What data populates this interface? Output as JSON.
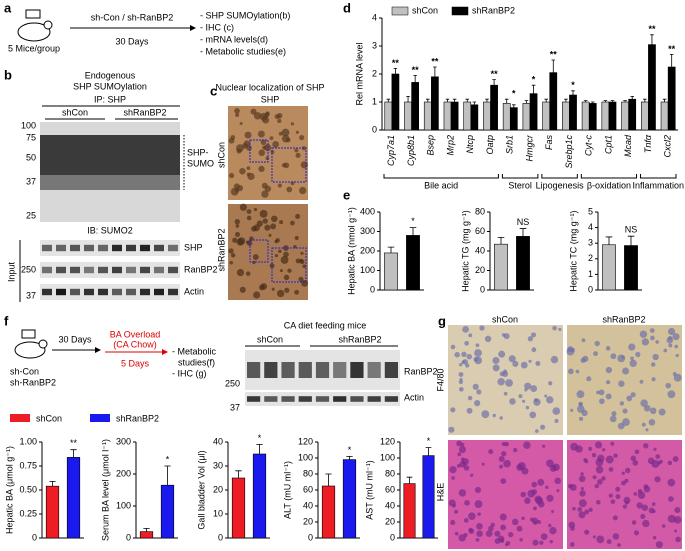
{
  "panels": {
    "a": {
      "letter": "a",
      "treatment": "sh-Con / sh-RanBP2",
      "group_size": "5 Mice/group",
      "duration": "30 Days",
      "readouts": [
        "- SHP SUMOylation(b)",
        "- IHC (c)",
        "- mRNA levels(d)",
        "- Metabolic studies(e)"
      ]
    },
    "b": {
      "letter": "b",
      "title": [
        "Endogenous",
        "SHP SUMOylation"
      ],
      "ip": "IP: SHP",
      "lanes": [
        "shCon",
        "shRanBP2"
      ],
      "mw_top": [
        "100",
        "75",
        "50",
        "37",
        "25"
      ],
      "band_label": [
        "SHP-",
        "SUMO"
      ],
      "ib": "IB: SUMO2",
      "input": "Input",
      "input_rows": [
        "SHP",
        "RanBP2",
        "Actin"
      ],
      "mw_input": [
        "250",
        "37"
      ]
    },
    "c": {
      "letter": "c",
      "title": "Nuclear localization of SHP",
      "stain": "SHP",
      "rows": [
        "shCon",
        "shRanBP2"
      ]
    },
    "e": {
      "letter": "e"
    },
    "d": {
      "letter": "d"
    },
    "f": {
      "letter": "f",
      "mouse": [
        "sh-Con",
        "sh-RanBP2"
      ],
      "step1": "30 Days",
      "overload": [
        "BA Overload",
        "(CA Chow)"
      ],
      "step2": "5 Days",
      "readouts": [
        "- Metabolic",
        "studies(f)",
        "- IHC (g)"
      ],
      "blot_title": "CA diet feeding mice",
      "lanes": [
        "shCon",
        "shRanBP2"
      ],
      "blot_rows": [
        "RanBP2",
        "Actin"
      ],
      "mw": [
        "250",
        "37"
      ],
      "legend": [
        {
          "name": "shCon",
          "color": "#ee1c25"
        },
        {
          "name": "shRanBP2",
          "color": "#1a1aee"
        }
      ]
    },
    "g": {
      "letter": "g",
      "columns": [
        "shCon",
        "shRanBP2"
      ],
      "rows": [
        "F4/80",
        "H&E"
      ]
    }
  },
  "chart_data": [
    {
      "type": "bar",
      "y_label": "Rel mRNA level",
      "categories": [
        "Cyp7a1",
        "Cyp8b1",
        "Bsep",
        "Mrp2",
        "Ntcp",
        "Oatp",
        "Srb1",
        "Hmgcr",
        "Fas",
        "Srebp1c",
        "Cyt-c",
        "Cpt1",
        "Mcad",
        "Tnfα",
        "Cxcl2"
      ],
      "series": [
        {
          "name": "shCon",
          "color": "#c0c0c0",
          "values": [
            1,
            1,
            1,
            1,
            1,
            1,
            0.95,
            0.95,
            1,
            1,
            1,
            1,
            1,
            1,
            1
          ],
          "errors": [
            0.1,
            0.2,
            0.1,
            0.1,
            0.1,
            0.1,
            0.15,
            0.1,
            0.1,
            0.1,
            0.05,
            0.05,
            0.05,
            0.1,
            0.1
          ]
        },
        {
          "name": "shRanBP2",
          "color": "#000000",
          "values": [
            2,
            1.7,
            1.9,
            1,
            0.9,
            1.6,
            0.8,
            1.3,
            2.05,
            1.25,
            0.95,
            1,
            1.1,
            3.05,
            2.25
          ],
          "errors": [
            0.2,
            0.25,
            0.35,
            0.1,
            0.1,
            0.2,
            0.1,
            0.3,
            0.45,
            0.15,
            0.05,
            0.05,
            0.1,
            0.35,
            0.45
          ]
        }
      ],
      "annotations": [
        "**",
        "**",
        "**",
        null,
        null,
        "**",
        "*",
        "*",
        "**",
        "*",
        null,
        null,
        null,
        "**",
        "**"
      ],
      "groups": [
        "Bile acid",
        "Sterol",
        "Lipogenesis",
        "β-oxidation",
        "Inflammation"
      ],
      "ylim": [
        0,
        4
      ],
      "yticks": [
        0,
        1,
        2,
        3,
        4
      ]
    },
    {
      "type": "bar",
      "y_label": "Hepatic BA (nmol g⁻¹)",
      "values": [
        190,
        280
      ],
      "errors": [
        30,
        40
      ],
      "colors": [
        "#c0c0c0",
        "#000000"
      ],
      "annotations": [
        null,
        "*"
      ],
      "ylim": [
        0,
        400
      ],
      "yticks": [
        0,
        100,
        200,
        300,
        400
      ]
    },
    {
      "type": "bar",
      "y_label": "Hepatic TG (mg g⁻¹)",
      "values": [
        47,
        55
      ],
      "errors": [
        7,
        8
      ],
      "colors": [
        "#c0c0c0",
        "#000000"
      ],
      "annotations": [
        null,
        "NS"
      ],
      "ylim": [
        0,
        80
      ],
      "yticks": [
        0,
        20,
        40,
        60,
        80
      ]
    },
    {
      "type": "bar",
      "y_label": "Hepatic TC (mg g⁻¹)",
      "values": [
        2.9,
        2.85
      ],
      "errors": [
        0.5,
        0.6
      ],
      "colors": [
        "#c0c0c0",
        "#000000"
      ],
      "annotations": [
        null,
        "NS"
      ],
      "ylim": [
        0,
        5
      ],
      "yticks": [
        0,
        1,
        2,
        3,
        4,
        5
      ]
    },
    {
      "type": "bar",
      "y_label": "Hepatic BA (μmol g⁻¹)",
      "values": [
        0.54,
        0.84
      ],
      "errors": [
        0.05,
        0.08
      ],
      "colors": [
        "#ee1c25",
        "#1a1aee"
      ],
      "annotations": [
        null,
        "**"
      ],
      "ylim": [
        0,
        1
      ],
      "yticks": [
        0,
        0.25,
        {
          "value": 0.5,
          "label": "0.50"
        },
        0.75,
        {
          "value": 1,
          "label": "1.00"
        }
      ]
    },
    {
      "type": "bar",
      "y_label": "Serum BA level (μmol l⁻¹)",
      "values": [
        20,
        165
      ],
      "errors": [
        10,
        60
      ],
      "colors": [
        "#ee1c25",
        "#1a1aee"
      ],
      "annotations": [
        null,
        "*"
      ],
      "ylim": [
        0,
        300
      ],
      "yticks": [
        0,
        100,
        200,
        300
      ]
    },
    {
      "type": "bar",
      "y_label": "Gall bladder Vol (μl)",
      "values": [
        25,
        35
      ],
      "errors": [
        3,
        4
      ],
      "colors": [
        "#ee1c25",
        "#1a1aee"
      ],
      "annotations": [
        null,
        "*"
      ],
      "ylim": [
        0,
        40
      ],
      "yticks": [
        0,
        10,
        20,
        30,
        40
      ]
    },
    {
      "type": "bar",
      "y_label": "ALT (mU ml⁻¹)",
      "values": [
        65,
        98
      ],
      "errors": [
        15,
        4
      ],
      "colors": [
        "#ee1c25",
        "#1a1aee"
      ],
      "annotations": [
        null,
        "*"
      ],
      "ylim": [
        0,
        120
      ],
      "yticks": [
        0,
        20,
        40,
        60,
        80,
        100,
        120
      ]
    },
    {
      "type": "bar",
      "y_label": "AST (mU ml⁻¹)",
      "values": [
        68,
        103
      ],
      "errors": [
        8,
        10
      ],
      "colors": [
        "#ee1c25",
        "#1a1aee"
      ],
      "annotations": [
        null,
        "*"
      ],
      "ylim": [
        0,
        120
      ],
      "yticks": [
        0,
        20,
        40,
        60,
        80,
        100,
        120
      ]
    }
  ]
}
